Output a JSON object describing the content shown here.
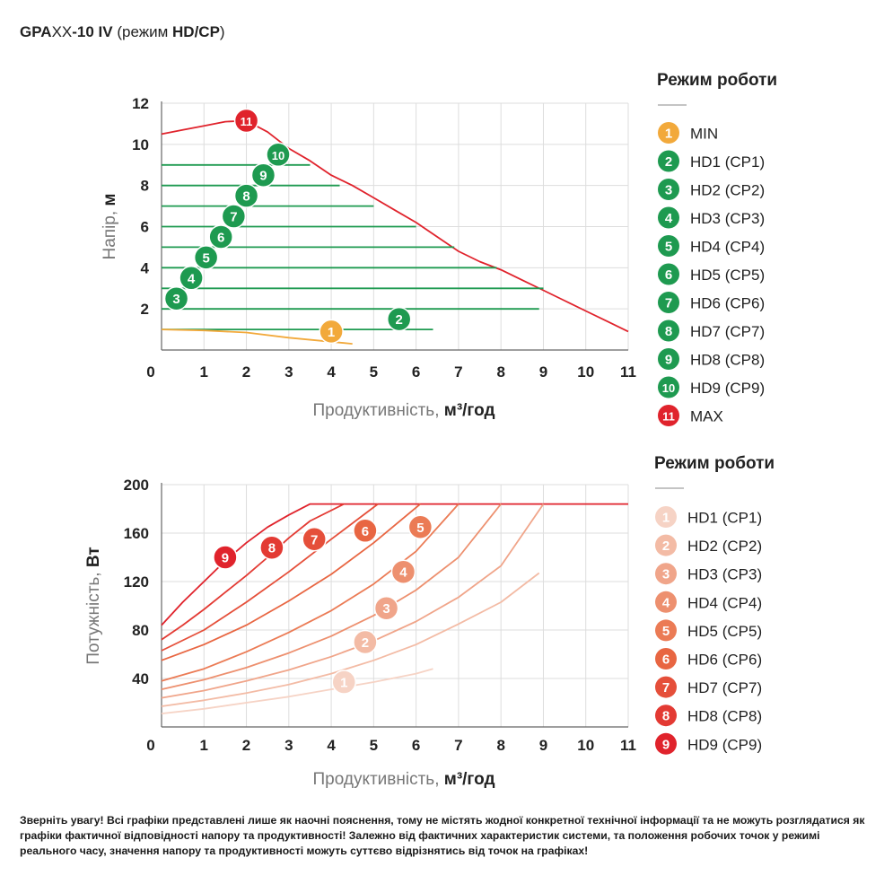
{
  "header": {
    "title_bold_1": "GPA",
    "title_plain_1": "XX",
    "title_bold_2": "-10 IV",
    "title_plain_2": " (режим ",
    "title_bold_3": "HD/CP",
    "title_plain_3": ")"
  },
  "note": "Зверніть увагу! Всі графіки представлені лише як наочні пояснення, тому не містять жодної конкретної технічної інформації та не можуть розглядатися як графіки фактичної відповідності напору та продуктивності! Залежно від фактичних характеристик системи, та положення робочих точок у режимі реального часу, значення напору та продуктивності можуть суттєво відрізнятись від точок на графіках!",
  "colors": {
    "green": "#1e9a50",
    "red": "#e0232c",
    "orange": "#f2a93b",
    "axis": "#666666",
    "grid": "#dddddd"
  },
  "chart_data": [
    {
      "type": "line",
      "title": "",
      "xlabel_plain": "Продуктивність, ",
      "xlabel_bold": "м³/год",
      "ylabel_plain": "Напір, ",
      "ylabel_bold": "м",
      "xlim": [
        0,
        11
      ],
      "ylim": [
        0,
        12
      ],
      "xticks": [
        0,
        1,
        2,
        3,
        4,
        5,
        6,
        7,
        8,
        9,
        10,
        11
      ],
      "yticks": [
        0,
        2,
        4,
        6,
        8,
        10,
        12
      ],
      "grid": true,
      "legend_title": "Режим роботи",
      "legend": [
        {
          "num": "1",
          "label": "MIN",
          "color": "#f2a93b"
        },
        {
          "num": "2",
          "label": "HD1 (CP1)",
          "color": "#1e9a50"
        },
        {
          "num": "3",
          "label": "HD2 (CP2)",
          "color": "#1e9a50"
        },
        {
          "num": "4",
          "label": "HD3 (CP3)",
          "color": "#1e9a50"
        },
        {
          "num": "5",
          "label": "HD4 (CP4)",
          "color": "#1e9a50"
        },
        {
          "num": "6",
          "label": "HD5 (CP5)",
          "color": "#1e9a50"
        },
        {
          "num": "7",
          "label": "HD6 (CP6)",
          "color": "#1e9a50"
        },
        {
          "num": "8",
          "label": "HD7 (CP7)",
          "color": "#1e9a50"
        },
        {
          "num": "9",
          "label": "HD8 (CP8)",
          "color": "#1e9a50"
        },
        {
          "num": "10",
          "label": "HD9 (CP9)",
          "color": "#1e9a50"
        },
        {
          "num": "11",
          "label": "MAX",
          "color": "#e0232c"
        }
      ],
      "series": [
        {
          "name": "MAX",
          "num": "11",
          "color": "#e0232c",
          "x": [
            0,
            0.5,
            1,
            1.5,
            2,
            2.5,
            3,
            3.5,
            4,
            4.5,
            5,
            5.5,
            6,
            6.5,
            7,
            7.5,
            8,
            8.5,
            9,
            9.5,
            10,
            10.5,
            11
          ],
          "y": [
            10.5,
            10.7,
            10.9,
            11.1,
            11.15,
            10.6,
            9.8,
            9.2,
            8.5,
            8.0,
            7.4,
            6.8,
            6.2,
            5.5,
            4.8,
            4.3,
            3.9,
            3.4,
            2.9,
            2.4,
            1.9,
            1.4,
            0.9
          ],
          "marker": [
            2,
            11.15
          ]
        },
        {
          "name": "HD9 (CP9)",
          "num": "10",
          "color": "#1e9a50",
          "x": [
            0,
            3.5
          ],
          "y": [
            9,
            9
          ],
          "marker": [
            2.75,
            9.5
          ]
        },
        {
          "name": "HD8 (CP8)",
          "num": "9",
          "color": "#1e9a50",
          "x": [
            0,
            4.2
          ],
          "y": [
            8,
            8
          ],
          "marker": [
            2.4,
            8.5
          ]
        },
        {
          "name": "HD7 (CP7)",
          "num": "8",
          "color": "#1e9a50",
          "x": [
            0,
            5.0
          ],
          "y": [
            7,
            7
          ],
          "marker": [
            2.0,
            7.5
          ]
        },
        {
          "name": "HD6 (CP6)",
          "num": "7",
          "color": "#1e9a50",
          "x": [
            0,
            6.0
          ],
          "y": [
            6,
            6
          ],
          "marker": [
            1.7,
            6.5
          ]
        },
        {
          "name": "HD5 (CP5)",
          "num": "6",
          "color": "#1e9a50",
          "x": [
            0,
            6.9
          ],
          "y": [
            5,
            5
          ],
          "marker": [
            1.4,
            5.5
          ]
        },
        {
          "name": "HD4 (CP4)",
          "num": "5",
          "color": "#1e9a50",
          "x": [
            0,
            7.9
          ],
          "y": [
            4,
            4
          ],
          "marker": [
            1.05,
            4.5
          ]
        },
        {
          "name": "HD3 (CP3)",
          "num": "4",
          "color": "#1e9a50",
          "x": [
            0,
            9.0
          ],
          "y": [
            3,
            3
          ],
          "marker": [
            0.7,
            3.5
          ]
        },
        {
          "name": "HD2 (CP2)",
          "num": "3",
          "color": "#1e9a50",
          "x": [
            0,
            8.9
          ],
          "y": [
            2,
            2
          ],
          "marker": [
            0.35,
            2.5
          ]
        },
        {
          "name": "HD1 (CP1)",
          "num": "2",
          "color": "#1e9a50",
          "x": [
            0,
            6.4
          ],
          "y": [
            1,
            1
          ],
          "marker": [
            5.6,
            1.5
          ]
        },
        {
          "name": "MIN",
          "num": "1",
          "color": "#f2a93b",
          "x": [
            0,
            1,
            2,
            3,
            4,
            4.5
          ],
          "y": [
            1,
            0.95,
            0.85,
            0.6,
            0.4,
            0.3
          ],
          "marker": [
            4.0,
            0.9
          ]
        }
      ]
    },
    {
      "type": "line",
      "title": "",
      "xlabel_plain": "Продуктивність, ",
      "xlabel_bold": "м³/год",
      "ylabel_plain": "Потужність, ",
      "ylabel_bold": "Вт",
      "xlim": [
        0,
        11
      ],
      "ylim": [
        0,
        200
      ],
      "xticks": [
        0,
        1,
        2,
        3,
        4,
        5,
        6,
        7,
        8,
        9,
        10,
        11
      ],
      "yticks": [
        0,
        40,
        80,
        120,
        160,
        200
      ],
      "grid": true,
      "legend_title": "Режим роботи",
      "legend": [
        {
          "num": "1",
          "label": "HD1 (CP1)",
          "color": "#f6d3c5"
        },
        {
          "num": "2",
          "label": "HD2 (CP2)",
          "color": "#f3bba5"
        },
        {
          "num": "3",
          "label": "HD3 (CP3)",
          "color": "#f0a58a"
        },
        {
          "num": "4",
          "label": "HD4 (CP4)",
          "color": "#ed906f"
        },
        {
          "num": "5",
          "label": "HD5 (CP5)",
          "color": "#eb7b55"
        },
        {
          "num": "6",
          "label": "HD6 (CP6)",
          "color": "#e86642"
        },
        {
          "num": "7",
          "label": "HD7 (CP7)",
          "color": "#e54f3a"
        },
        {
          "num": "8",
          "label": "HD8 (CP8)",
          "color": "#e33a33"
        },
        {
          "num": "9",
          "label": "HD9 (CP9)",
          "color": "#e0232c"
        }
      ],
      "series": [
        {
          "name": "HD9 (CP9)",
          "num": "9",
          "color": "#e0232c",
          "x": [
            0,
            0.5,
            1,
            1.5,
            2,
            2.5,
            3,
            3.5,
            4,
            5,
            6,
            7,
            8,
            9,
            10,
            11
          ],
          "y": [
            84,
            103,
            120,
            137,
            152,
            165,
            175,
            184,
            184,
            184,
            184,
            184,
            184,
            184,
            184,
            184
          ],
          "marker": [
            1.5,
            140
          ]
        },
        {
          "name": "HD8 (CP8)",
          "num": "8",
          "color": "#e33a33",
          "x": [
            0,
            0.5,
            1,
            1.5,
            2,
            2.5,
            3,
            3.5,
            4.3
          ],
          "y": [
            72,
            84,
            97,
            111,
            125,
            140,
            156,
            170,
            184
          ],
          "marker": [
            2.6,
            148
          ]
        },
        {
          "name": "HD7 (CP7)",
          "num": "7",
          "color": "#e54f3a",
          "x": [
            0,
            1,
            2,
            3,
            4,
            5.1
          ],
          "y": [
            63,
            80,
            103,
            128,
            155,
            184
          ],
          "marker": [
            3.6,
            155
          ]
        },
        {
          "name": "HD6 (CP6)",
          "num": "6",
          "color": "#e86642",
          "x": [
            0,
            1,
            2,
            3,
            4,
            5,
            6.1
          ],
          "y": [
            55,
            68,
            84,
            104,
            126,
            152,
            184
          ],
          "marker": [
            4.8,
            162
          ]
        },
        {
          "name": "HD5 (CP5)",
          "num": "5",
          "color": "#eb7b55",
          "x": [
            0,
            1,
            2,
            3,
            4,
            5,
            6,
            7.0
          ],
          "y": [
            38,
            48,
            62,
            78,
            96,
            118,
            145,
            184
          ],
          "marker": [
            6.1,
            165
          ]
        },
        {
          "name": "HD4 (CP4)",
          "num": "4",
          "color": "#ed906f",
          "x": [
            0,
            1,
            2,
            3,
            4,
            5,
            6,
            7,
            8.0
          ],
          "y": [
            31,
            39,
            49,
            61,
            75,
            92,
            113,
            140,
            184
          ],
          "marker": [
            5.7,
            128
          ]
        },
        {
          "name": "HD3 (CP3)",
          "num": "3",
          "color": "#f0a58a",
          "x": [
            0,
            1,
            2,
            3,
            4,
            5,
            6,
            7,
            8,
            9.0
          ],
          "y": [
            24,
            30,
            38,
            47,
            58,
            71,
            87,
            107,
            133,
            184
          ],
          "marker": [
            5.3,
            98
          ]
        },
        {
          "name": "HD2 (CP2)",
          "num": "2",
          "color": "#f3bba5",
          "x": [
            0,
            1,
            2,
            3,
            4,
            5,
            6,
            7,
            8,
            8.9
          ],
          "y": [
            17,
            22,
            28,
            35,
            44,
            55,
            68,
            85,
            103,
            127
          ],
          "marker": [
            4.8,
            70
          ]
        },
        {
          "name": "HD1 (CP1)",
          "num": "1",
          "color": "#f6d3c5",
          "x": [
            0,
            1,
            2,
            3,
            4,
            5,
            6,
            6.4
          ],
          "y": [
            11,
            15,
            20,
            25,
            31,
            37,
            44,
            48
          ],
          "marker": [
            4.3,
            37
          ]
        }
      ]
    }
  ]
}
